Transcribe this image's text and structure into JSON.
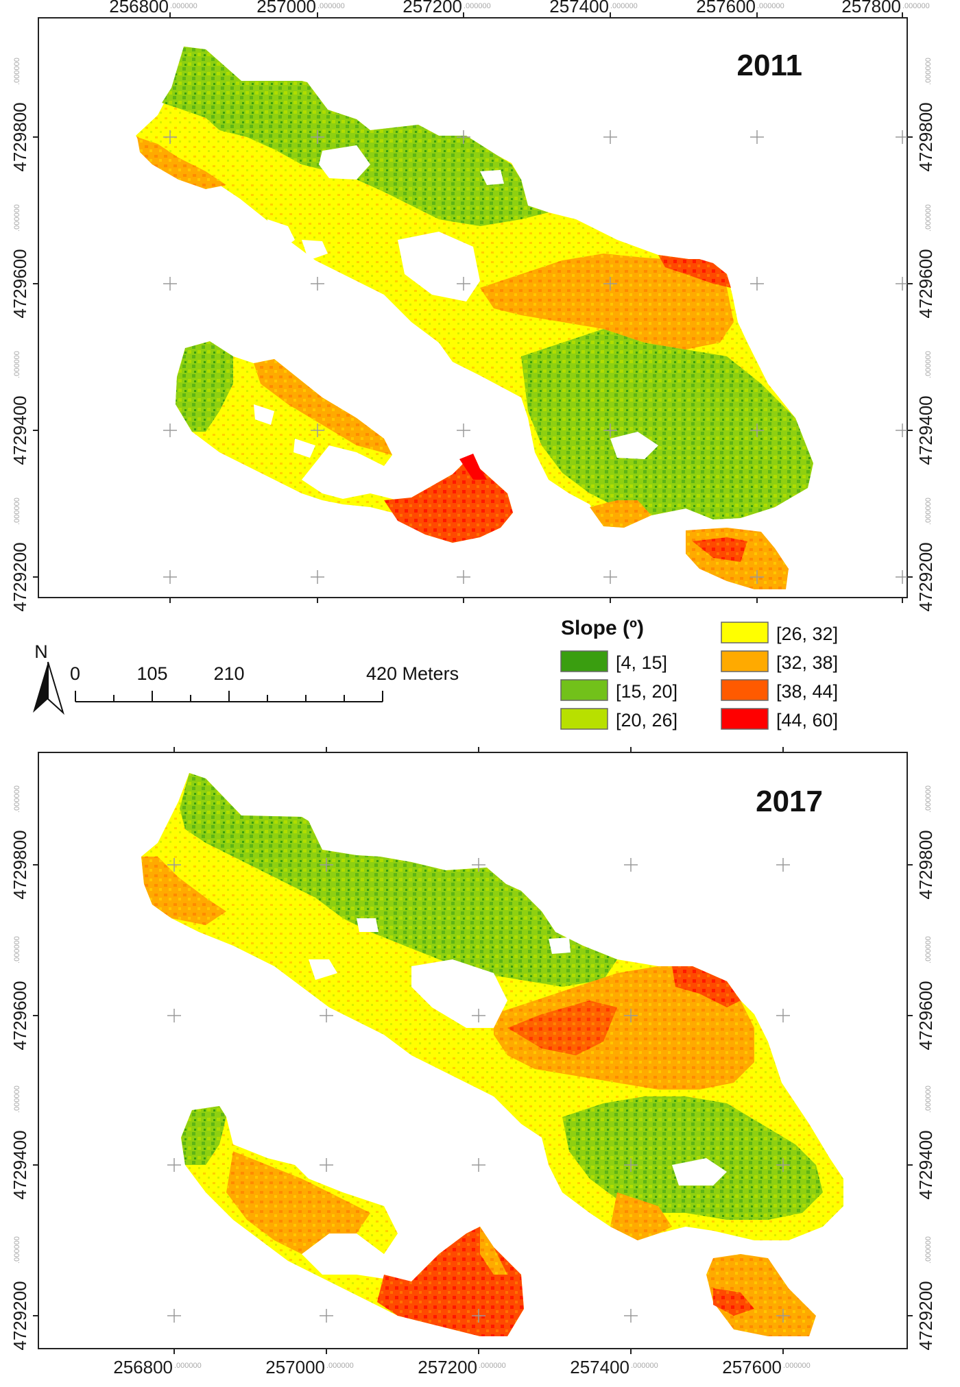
{
  "maps": [
    {
      "year": "2011",
      "x_ticks": [
        "256800",
        "257000",
        "257200",
        "257400",
        "257600",
        "257800"
      ],
      "y_ticks": [
        "4729800",
        "4729600",
        "4729400",
        "4729200"
      ],
      "tick_suffix": ".000000"
    },
    {
      "year": "2017",
      "x_ticks": [
        "256800",
        "257000",
        "257200",
        "257400",
        "257600"
      ],
      "y_ticks": [
        "4729800",
        "4729600",
        "4729400",
        "4729200"
      ],
      "tick_suffix": ".000000"
    }
  ],
  "legend": {
    "title": "Slope (º)",
    "classes": [
      {
        "label": "[4, 15]",
        "color": "#3a9e10"
      },
      {
        "label": "[15, 20]",
        "color": "#72c11a"
      },
      {
        "label": "[20, 26]",
        "color": "#b8e000"
      },
      {
        "label": "[26, 32]",
        "color": "#ffff00"
      },
      {
        "label": "[32, 38]",
        "color": "#ffaa00"
      },
      {
        "label": "[38, 44]",
        "color": "#ff5a00"
      },
      {
        "label": "[44, 60]",
        "color": "#ff0000"
      }
    ]
  },
  "north_arrow": {
    "label": "N"
  },
  "scale_bar": {
    "labels": [
      "0",
      "105",
      "210",
      "420 Meters"
    ],
    "values": [
      0,
      105,
      210,
      420
    ]
  }
}
